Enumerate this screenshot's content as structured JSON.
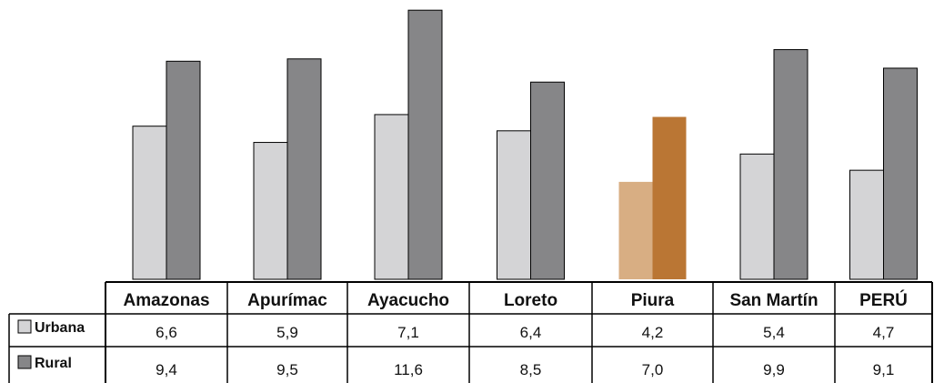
{
  "chart_data": {
    "type": "bar",
    "categories": [
      "Amazonas",
      "Apurímac",
      "Ayacucho",
      "Loreto",
      "Piura",
      "San Martín",
      "PERÚ"
    ],
    "series": [
      {
        "name": "Urbana",
        "values": [
          6.6,
          5.9,
          7.1,
          6.4,
          4.2,
          5.4,
          4.7
        ],
        "labels": [
          "6,6",
          "5,9",
          "7,1",
          "6,4",
          "4,2",
          "5,4",
          "4,7"
        ],
        "color": "#d4d4d6",
        "highlight_color": "#d8ae83"
      },
      {
        "name": "Rural",
        "values": [
          9.4,
          9.5,
          11.6,
          8.5,
          7.0,
          9.9,
          9.1
        ],
        "labels": [
          "9,4",
          "9,5",
          "11,6",
          "8,5",
          "7,0",
          "9,9",
          "9,1"
        ],
        "color": "#868688",
        "highlight_color": "#ba7634"
      }
    ],
    "highlight_category": "Piura",
    "ylim": [
      0,
      12
    ],
    "grid": false,
    "legend": "data-table-left"
  }
}
